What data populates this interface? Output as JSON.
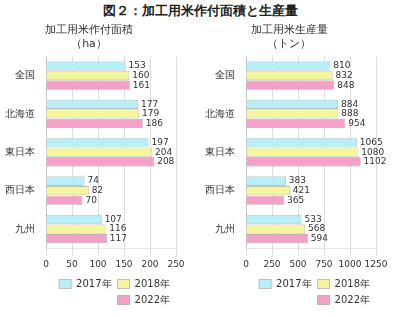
{
  "title": "図２：加工用米作付面積と生産量",
  "chart_data": [
    {
      "type": "bar",
      "orientation": "horizontal",
      "title": "加工用米作付面積\n（ha）",
      "categories": [
        "全国",
        "北海道",
        "東日本",
        "西日本",
        "九州"
      ],
      "series": [
        {
          "name": "2017年",
          "color": "#b8eef5",
          "values": [
            153,
            177,
            197,
            74,
            107
          ]
        },
        {
          "name": "2018年",
          "color": "#f5f5a0",
          "values": [
            160,
            179,
            204,
            82,
            116
          ]
        },
        {
          "name": "2022年",
          "color": "#f5a0c8",
          "values": [
            161,
            186,
            208,
            70,
            117
          ]
        }
      ],
      "xlim": [
        0,
        250
      ],
      "xticks": [
        0,
        50,
        100,
        150,
        200,
        250
      ],
      "grid": true,
      "legend": "lower right",
      "data_labels": true
    },
    {
      "type": "bar",
      "orientation": "horizontal",
      "title": "加工用米生産量\n（トン）",
      "categories": [
        "全国",
        "北海道",
        "東日本",
        "西日本",
        "九州"
      ],
      "series": [
        {
          "name": "2017年",
          "color": "#b8eef5",
          "values": [
            810,
            884,
            1065,
            383,
            533
          ]
        },
        {
          "name": "2018年",
          "color": "#f5f5a0",
          "values": [
            832,
            888,
            1080,
            421,
            568
          ]
        },
        {
          "name": "2022年",
          "color": "#f5a0c8",
          "values": [
            848,
            954,
            1102,
            365,
            594
          ]
        }
      ],
      "xlim": [
        0,
        1250
      ],
      "xticks": [
        0,
        250,
        500,
        750,
        1000,
        1250
      ],
      "grid": true,
      "legend": "lower right",
      "data_labels": true
    }
  ]
}
